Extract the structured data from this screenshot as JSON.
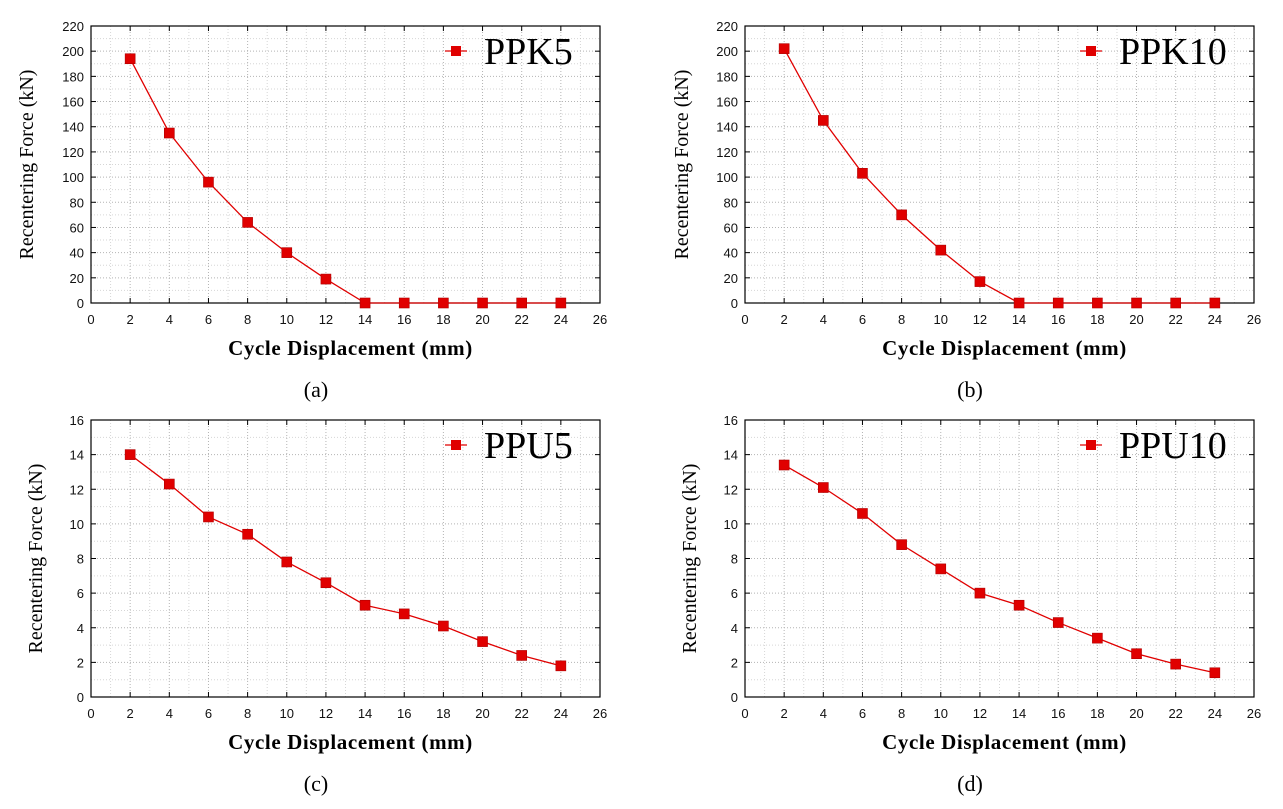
{
  "chart_data": [
    {
      "type": "line",
      "caption": "(a)",
      "xlabel": "Cycle Displacement (mm)",
      "ylabel": "Recentering Force (kN)",
      "xlim": [
        0,
        26
      ],
      "ylim": [
        0,
        220
      ],
      "xticks": [
        0,
        2,
        4,
        6,
        8,
        10,
        12,
        14,
        16,
        18,
        20,
        22,
        24,
        26
      ],
      "yticks": [
        0,
        20,
        40,
        60,
        80,
        100,
        120,
        140,
        160,
        180,
        200,
        220
      ],
      "grid": true,
      "legend_position": "top-right",
      "series": [
        {
          "name": "PPK5",
          "color": "#e00000",
          "marker": "square",
          "x": [
            2,
            4,
            6,
            8,
            10,
            12,
            14,
            16,
            18,
            20,
            22,
            24
          ],
          "y": [
            194,
            135,
            96,
            64,
            40,
            19,
            0,
            0,
            0,
            0,
            0,
            0
          ]
        }
      ]
    },
    {
      "type": "line",
      "caption": "(b)",
      "xlabel": "Cycle Displacement (mm)",
      "ylabel": "Recentering Force (kN)",
      "xlim": [
        0,
        26
      ],
      "ylim": [
        0,
        220
      ],
      "xticks": [
        0,
        2,
        4,
        6,
        8,
        10,
        12,
        14,
        16,
        18,
        20,
        22,
        24,
        26
      ],
      "yticks": [
        0,
        20,
        40,
        60,
        80,
        100,
        120,
        140,
        160,
        180,
        200,
        220
      ],
      "grid": true,
      "legend_position": "top-right",
      "series": [
        {
          "name": "PPK10",
          "color": "#e00000",
          "marker": "square",
          "x": [
            2,
            4,
            6,
            8,
            10,
            12,
            14,
            16,
            18,
            20,
            22,
            24
          ],
          "y": [
            202,
            145,
            103,
            70,
            42,
            17,
            0,
            0,
            0,
            0,
            0,
            0
          ]
        }
      ]
    },
    {
      "type": "line",
      "caption": "(c)",
      "xlabel": "Cycle Displacement (mm)",
      "ylabel": "Recentering Force (kN)",
      "xlim": [
        0,
        26
      ],
      "ylim": [
        0,
        16
      ],
      "xticks": [
        0,
        2,
        4,
        6,
        8,
        10,
        12,
        14,
        16,
        18,
        20,
        22,
        24,
        26
      ],
      "yticks": [
        0,
        2,
        4,
        6,
        8,
        10,
        12,
        14,
        16
      ],
      "grid": true,
      "legend_position": "top-right",
      "series": [
        {
          "name": "PPU5",
          "color": "#e00000",
          "marker": "square",
          "x": [
            2,
            4,
            6,
            8,
            10,
            12,
            14,
            16,
            18,
            20,
            22,
            24
          ],
          "y": [
            14.0,
            12.3,
            10.4,
            9.4,
            7.8,
            6.6,
            5.3,
            4.8,
            4.1,
            3.2,
            2.4,
            1.8
          ]
        }
      ]
    },
    {
      "type": "line",
      "caption": "(d)",
      "xlabel": "Cycle Displacement (mm)",
      "ylabel": "Recentering Force (kN)",
      "xlim": [
        0,
        26
      ],
      "ylim": [
        0,
        16
      ],
      "xticks": [
        0,
        2,
        4,
        6,
        8,
        10,
        12,
        14,
        16,
        18,
        20,
        22,
        24,
        26
      ],
      "yticks": [
        0,
        2,
        4,
        6,
        8,
        10,
        12,
        14,
        16
      ],
      "grid": true,
      "legend_position": "top-right",
      "series": [
        {
          "name": "PPU10",
          "color": "#e00000",
          "marker": "square",
          "x": [
            2,
            4,
            6,
            8,
            10,
            12,
            14,
            16,
            18,
            20,
            22,
            24
          ],
          "y": [
            13.4,
            12.1,
            10.6,
            8.8,
            7.4,
            6.0,
            5.3,
            4.3,
            3.4,
            2.5,
            1.9,
            1.4
          ]
        }
      ]
    }
  ]
}
